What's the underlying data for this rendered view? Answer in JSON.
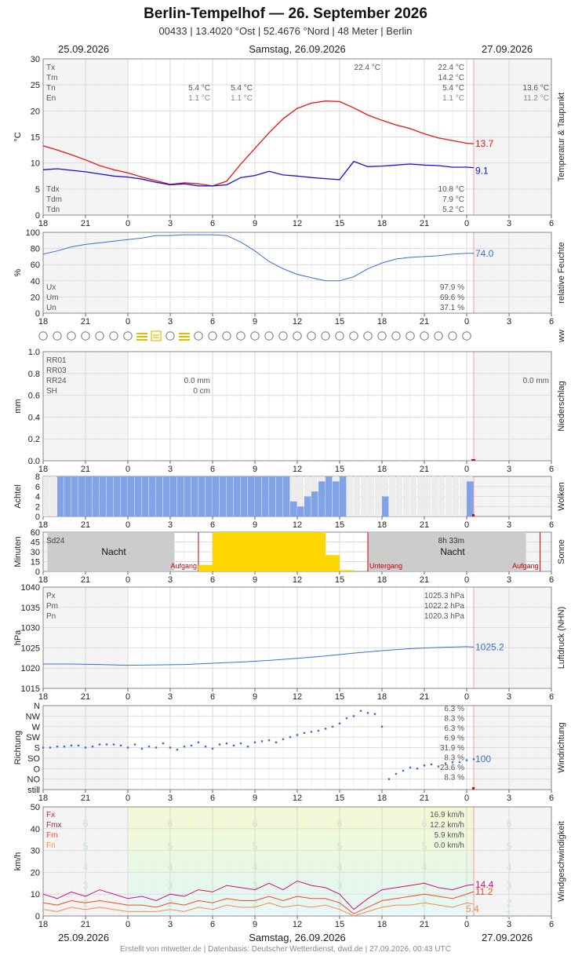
{
  "header": {
    "title": "Berlin-Tempelhof  —  26. September 2026",
    "subtitle": "00433  |  13.4020 °Ost  |  52.4676 °Nord  |  48 Meter  |  Berlin"
  },
  "dates": {
    "left": "25.09.2026",
    "center": "Samstag, 26.09.2026",
    "right": "27.09.2026"
  },
  "footer": "Erstellt von mtwetter.de | Datenbasis: Deutscher Wetterdienst, dwd.de | 27.09.2026, 00:43 UTC",
  "time_ticks": [
    "18",
    "21",
    "0",
    "3",
    "6",
    "9",
    "12",
    "15",
    "18",
    "21",
    "0",
    "3",
    "6"
  ],
  "colors": {
    "temp": "#ee1111",
    "dew": "#1111dd",
    "blue": "#3b6fd8",
    "cloud": "#7fa3e6",
    "sun": "#ffd700",
    "grid": "#dddddd"
  },
  "chart_data": [
    {
      "id": "temperature",
      "type": "line",
      "ylabel": "°C",
      "side_label": "Temperatur & Taupunkt",
      "ylim": [
        0,
        30
      ],
      "yticks": [
        "0",
        "5",
        "10",
        "15",
        "20",
        "25",
        "30"
      ],
      "x_unit": "hours since 25.09.2026 18:00",
      "series": [
        {
          "name": "Temperatur",
          "color": "#ee1111",
          "x": [
            0,
            1,
            2,
            3,
            4,
            5,
            6,
            7,
            8,
            9,
            10,
            11,
            12,
            13,
            14,
            15,
            16,
            17,
            18,
            19,
            20,
            21,
            22,
            23,
            24,
            25,
            26,
            27,
            28,
            29,
            30,
            30.5
          ],
          "values": [
            13.3,
            12.5,
            11.6,
            10.6,
            9.5,
            8.7,
            8.1,
            7.3,
            6.6,
            5.9,
            6.2,
            6.0,
            5.6,
            6.5,
            9.8,
            12.8,
            15.8,
            18.5,
            20.5,
            21.5,
            21.9,
            21.8,
            20.6,
            19.2,
            18.2,
            17.3,
            16.6,
            15.6,
            14.8,
            14.3,
            13.8,
            13.7
          ]
        },
        {
          "name": "Taupunkt",
          "color": "#1111dd",
          "x": [
            0,
            1,
            2,
            3,
            4,
            5,
            6,
            7,
            8,
            9,
            10,
            11,
            12,
            13,
            14,
            15,
            16,
            17,
            18,
            19,
            20,
            21,
            22,
            23,
            24,
            25,
            26,
            27,
            28,
            29,
            30,
            30.5
          ],
          "values": [
            8.7,
            8.9,
            8.6,
            8.3,
            7.9,
            7.5,
            7.3,
            6.9,
            6.3,
            5.8,
            6.0,
            5.6,
            5.6,
            5.8,
            7.2,
            7.6,
            8.4,
            7.7,
            7.5,
            7.2,
            7.0,
            6.8,
            10.3,
            9.3,
            9.4,
            9.6,
            9.8,
            9.6,
            9.5,
            9.2,
            9.2,
            9.1
          ]
        }
      ],
      "stats_left": [
        {
          "key": "Tx",
          "d1": "",
          "d2": "",
          "d3": "22.4 °C",
          "v": "22.4 °C",
          "r": ""
        },
        {
          "key": "Tm",
          "d1": "",
          "d2": "",
          "d3": "",
          "v": "14.2 °C",
          "r": ""
        },
        {
          "key": "Tn",
          "d1": "5.4 °C",
          "d2": "5.4 °C",
          "d3": "",
          "v": "5.4 °C",
          "r": "13.6 °C"
        },
        {
          "key": "En",
          "d1": "1.1 °C",
          "d2": "1.1 °C",
          "d3": "",
          "v": "1.1 °C",
          "r": "11.2 °C"
        }
      ],
      "stats_dew": [
        {
          "key": "Tdx",
          "v": "10.8 °C"
        },
        {
          "key": "Tdm",
          "v": "7.9 °C"
        },
        {
          "key": "Tdn",
          "v": "5.2 °C"
        }
      ],
      "end_labels": [
        "13.7",
        "9.1"
      ]
    },
    {
      "id": "humidity",
      "type": "line",
      "ylabel": "%",
      "side_label": "relative Feuchte",
      "ylim": [
        0,
        100
      ],
      "yticks": [
        "0",
        "20",
        "40",
        "60",
        "80",
        "100"
      ],
      "series": [
        {
          "name": "relative Feuchte",
          "color": "#3b6fd8",
          "x": [
            0,
            1,
            2,
            3,
            4,
            5,
            6,
            7,
            8,
            9,
            10,
            11,
            12,
            13,
            14,
            15,
            16,
            17,
            18,
            19,
            20,
            21,
            22,
            23,
            24,
            25,
            26,
            27,
            28,
            29,
            30,
            30.5
          ],
          "values": [
            73,
            77,
            82,
            85,
            87,
            89,
            91,
            93,
            96,
            96,
            97,
            97,
            97,
            96,
            88,
            77,
            64,
            55,
            48,
            44,
            40,
            40,
            45,
            55,
            62,
            67,
            69,
            70,
            71,
            73,
            74,
            74
          ]
        }
      ],
      "stats": [
        {
          "key": "Ux",
          "v": "97.9 %"
        },
        {
          "key": "Um",
          "v": "69.6 %"
        },
        {
          "key": "Un",
          "v": "37.1 %"
        }
      ],
      "end_label": "74.0"
    },
    {
      "id": "weather",
      "type": "table",
      "side_label": "ww",
      "codes": [
        "o",
        "o",
        "o",
        "o",
        "o",
        "o",
        "o",
        "fog",
        "foghaze",
        "o",
        "fog",
        "o",
        "o",
        "o",
        "o",
        "o",
        "o",
        "o",
        "o",
        "o",
        "o",
        "o",
        "o",
        "o",
        "o",
        "o",
        "o",
        "o",
        "o",
        "o",
        "o"
      ]
    },
    {
      "id": "precipitation",
      "type": "bar",
      "ylabel": "mm",
      "side_label": "Niederschlag",
      "ylim": [
        0,
        1.0
      ],
      "yticks": [
        "0.0",
        "0.2",
        "0.4",
        "0.6",
        "0.8",
        "1.0"
      ],
      "stats": [
        {
          "key": "RR01",
          "v": "",
          "r": ""
        },
        {
          "key": "RR03",
          "v": "",
          "r": ""
        },
        {
          "key": "RR24",
          "v": "0.0 mm",
          "r": "0.0 mm"
        },
        {
          "key": "SH",
          "v": "0 cm",
          "r": ""
        }
      ],
      "values": []
    },
    {
      "id": "clouds",
      "type": "bar",
      "ylabel": "Achtel",
      "side_label": "Wolken",
      "ylim": [
        0,
        8
      ],
      "yticks": [
        "0",
        "2",
        "4",
        "6",
        "8"
      ],
      "x": [
        0,
        0.5,
        1,
        1.5,
        2,
        2.5,
        3,
        3.5,
        4,
        4.5,
        5,
        5.5,
        6,
        6.5,
        7,
        7.5,
        8,
        8.5,
        9,
        9.5,
        10,
        10.5,
        11,
        11.5,
        12,
        12.5,
        13,
        13.5,
        14,
        14.5,
        15,
        15.5,
        16,
        16.5,
        17,
        17.5,
        18,
        18.5,
        19,
        19.5,
        20,
        20.5,
        21,
        21.5,
        22,
        22.5,
        23,
        23.5,
        24,
        24.5,
        25,
        25.5,
        26,
        26.5,
        27,
        27.5,
        28,
        28.5,
        29,
        29.5,
        30
      ],
      "values": [
        0,
        0,
        8,
        8,
        8,
        8,
        8,
        8,
        8,
        8,
        8,
        8,
        8,
        8,
        8,
        8,
        8,
        8,
        8,
        8,
        8,
        8,
        8,
        8,
        8,
        8,
        8,
        8,
        8,
        8,
        8,
        8,
        8,
        8,
        8,
        3,
        2,
        4,
        5,
        7,
        8,
        7,
        8,
        0,
        0,
        0,
        0,
        0,
        4,
        0,
        0,
        0,
        0,
        0,
        0,
        0,
        0,
        0,
        0,
        0,
        7
      ]
    },
    {
      "id": "sunshine",
      "type": "bar",
      "ylabel": "Minuten",
      "side_label": "Sonne",
      "ylim": [
        0,
        60
      ],
      "yticks": [
        "0",
        "15",
        "30",
        "45",
        "60"
      ],
      "x": [
        0,
        1,
        2,
        3,
        4,
        5,
        6,
        7,
        8,
        9,
        10,
        11,
        12,
        13,
        14,
        15,
        16,
        17,
        18,
        19,
        20,
        21,
        22,
        23,
        24,
        25,
        26,
        27,
        28,
        29,
        30
      ],
      "values": [
        0,
        0,
        0,
        0,
        0,
        0,
        0,
        0,
        0,
        0,
        0,
        0,
        10,
        60,
        60,
        60,
        60,
        60,
        60,
        60,
        60,
        25,
        2,
        0,
        0,
        0,
        0,
        0,
        0,
        0,
        0
      ],
      "stats": [
        {
          "key": "Sd24",
          "v": "8h 33m"
        }
      ],
      "night_label": "Nacht",
      "sunrise_label": "Aufgang",
      "sunset_label": "Untergang"
    },
    {
      "id": "pressure",
      "type": "line",
      "ylabel": "hPa",
      "side_label": "Luftdruck (NHN)",
      "ylim": [
        1015,
        1040
      ],
      "yticks": [
        "1015",
        "1020",
        "1025",
        "1030",
        "1035",
        "1040"
      ],
      "series": [
        {
          "name": "Luftdruck",
          "color": "#3b6fd8",
          "x": [
            0,
            2,
            4,
            6,
            8,
            10,
            12,
            14,
            16,
            18,
            20,
            22,
            24,
            26,
            28,
            30,
            30.5
          ],
          "values": [
            1021.0,
            1021.0,
            1020.9,
            1020.7,
            1020.8,
            1020.9,
            1021.2,
            1021.5,
            1021.9,
            1022.4,
            1023.0,
            1023.7,
            1024.3,
            1024.8,
            1025.1,
            1025.3,
            1025.2
          ]
        }
      ],
      "stats": [
        {
          "key": "Px",
          "v": "1025.3 hPa"
        },
        {
          "key": "Pm",
          "v": "1022.2 hPa"
        },
        {
          "key": "Pn",
          "v": "1020.3 hPa"
        }
      ],
      "end_label": "1025.2"
    },
    {
      "id": "wind_direction",
      "type": "scatter",
      "ylabel": "Richtung",
      "side_label": "Windrichtung",
      "yticks": [
        "still",
        "NO",
        "O",
        "SO",
        "S",
        "SW",
        "W",
        "NW",
        "N"
      ],
      "series": [
        {
          "name": "Windrichtung",
          "color": "#3b6fd8",
          "x": [
            0,
            0.5,
            1,
            1.5,
            2,
            2.5,
            3,
            3.5,
            4,
            4.5,
            5,
            5.5,
            6,
            6.5,
            7,
            7.5,
            8,
            8.5,
            9,
            9.5,
            10,
            10.5,
            11,
            11.5,
            12,
            12.5,
            13,
            13.5,
            14,
            14.5,
            15,
            15.5,
            16,
            16.5,
            17,
            17.5,
            18,
            18.5,
            19,
            19.5,
            20,
            20.5,
            21,
            21.5,
            22,
            22.5,
            23,
            23.5,
            24,
            24.5,
            25,
            25.5,
            26,
            26.5,
            27,
            27.5,
            28,
            28.5,
            29,
            29.5,
            30,
            30.5
          ],
          "values": [
            4.0,
            4.0,
            4.1,
            4.1,
            4.2,
            4.2,
            4.0,
            4.1,
            4.3,
            4.3,
            4.3,
            4.2,
            4.0,
            4.3,
            3.9,
            4.1,
            4.0,
            4.4,
            4.0,
            3.8,
            4.1,
            4.2,
            4.5,
            4.1,
            3.9,
            4.3,
            4.4,
            4.2,
            4.4,
            4.1,
            4.5,
            4.6,
            4.7,
            4.5,
            4.8,
            5.0,
            5.2,
            5.4,
            5.5,
            5.6,
            5.8,
            6.0,
            6.3,
            6.8,
            7.0,
            7.5,
            7.3,
            7.2,
            6.0,
            1.0,
            1.5,
            1.8,
            2.1,
            2.0,
            2.3,
            2.4,
            2.2,
            2.5,
            2.6,
            2.6,
            2.8,
            2.9
          ]
        }
      ],
      "stats": [
        {
          "key": "N",
          "v": "6.3 %"
        },
        {
          "key": "NW",
          "v": "8.3 %"
        },
        {
          "key": "W",
          "v": "6.3 %"
        },
        {
          "key": "SW",
          "v": "6.9 %"
        },
        {
          "key": "S",
          "v": "31.9 %"
        },
        {
          "key": "SO",
          "v": "8.3 %"
        },
        {
          "key": "O",
          "v": "23.6 %"
        },
        {
          "key": "NO",
          "v": "8.3 %"
        }
      ],
      "end_label": "100"
    },
    {
      "id": "wind_speed",
      "type": "line",
      "ylabel": "km/h",
      "side_label": "Windgeschwindigkeit",
      "ylim": [
        0,
        50
      ],
      "yticks": [
        "0",
        "10",
        "20",
        "30",
        "40",
        "50"
      ],
      "bft_labels": [
        "1",
        "2",
        "3",
        "4",
        "5",
        "6"
      ],
      "series": [
        {
          "name": "Fx",
          "color": "#cc1177",
          "x": [
            0,
            1,
            2,
            3,
            4,
            5,
            6,
            7,
            8,
            9,
            10,
            11,
            12,
            13,
            14,
            15,
            16,
            17,
            18,
            19,
            20,
            21,
            22,
            23,
            24,
            25,
            26,
            27,
            28,
            29,
            30,
            30.5
          ],
          "values": [
            10,
            8,
            11,
            9,
            12,
            10,
            8,
            9,
            7,
            10,
            9,
            12,
            11,
            14,
            13,
            12,
            15,
            12,
            16,
            14,
            13,
            10,
            3,
            8,
            12,
            13,
            14,
            15,
            13,
            12,
            14,
            14.4
          ]
        },
        {
          "name": "Fm",
          "color": "#ff4422",
          "x": [
            0,
            1,
            2,
            3,
            4,
            5,
            6,
            7,
            8,
            9,
            10,
            11,
            12,
            13,
            14,
            15,
            16,
            17,
            18,
            19,
            20,
            21,
            22,
            23,
            24,
            25,
            26,
            27,
            28,
            29,
            30,
            30.5
          ],
          "values": [
            6,
            5,
            7,
            6,
            7,
            6,
            5,
            5,
            4,
            6,
            5,
            7,
            6,
            8,
            7,
            7,
            9,
            7,
            9,
            8,
            8,
            6,
            1,
            4,
            7,
            8,
            9,
            10,
            9,
            8,
            10,
            11.2
          ]
        },
        {
          "name": "Fn",
          "color": "#ff8844",
          "x": [
            0,
            1,
            2,
            3,
            4,
            5,
            6,
            7,
            8,
            9,
            10,
            11,
            12,
            13,
            14,
            15,
            16,
            17,
            18,
            19,
            20,
            21,
            22,
            23,
            24,
            25,
            26,
            27,
            28,
            29,
            30,
            30.5
          ],
          "values": [
            3,
            2,
            4,
            3,
            4,
            3,
            2,
            2,
            2,
            3,
            2,
            4,
            3,
            5,
            4,
            4,
            6,
            4,
            5,
            4,
            5,
            3,
            0,
            2,
            4,
            5,
            5,
            6,
            5,
            4,
            6,
            5.4
          ]
        }
      ],
      "stats": [
        {
          "key": "Fx",
          "v": "16.9 km/h",
          "color": "#cc1177"
        },
        {
          "key": "Fmx",
          "v": "12.2 km/h",
          "color": "#992255"
        },
        {
          "key": "Fm",
          "v": "5.9 km/h",
          "color": "#ff4422"
        },
        {
          "key": "Fn",
          "v": "0.0 km/h",
          "color": "#ff8844"
        }
      ],
      "end_labels": [
        "14.4",
        "11.2",
        "5.4"
      ]
    }
  ]
}
